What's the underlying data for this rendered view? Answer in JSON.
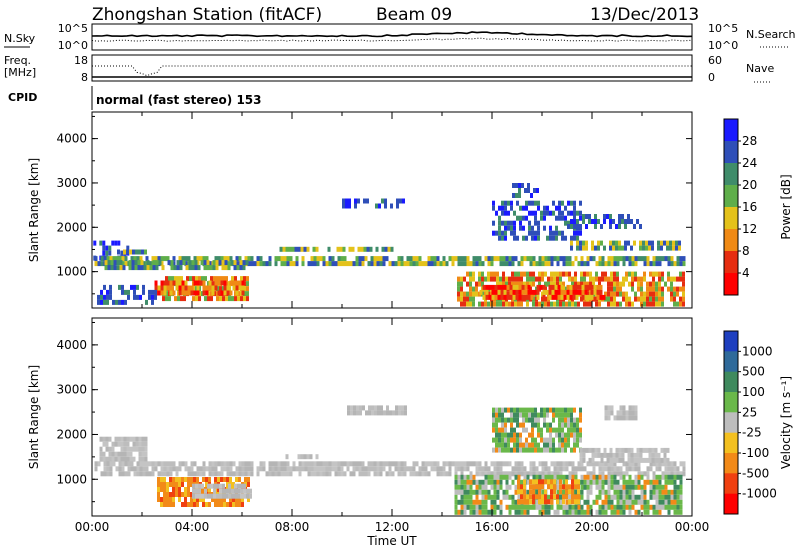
{
  "header": {
    "station": "Zhongshan Station (fitACF)",
    "beam": "Beam 09",
    "date": "13/Dec/2013"
  },
  "top_panels": {
    "nsky_label": "N.Sky",
    "nsearch_label": "N.Search",
    "noise_ticks_left": [
      "10^5",
      "10^0"
    ],
    "noise_ticks_right": [
      "10^5",
      "10^0"
    ],
    "freq_label_1": "Freq.",
    "freq_label_2": "[MHz]",
    "freq_ticks": [
      "18",
      "8"
    ],
    "nave_label": "Nave",
    "nave_ticks": [
      "60",
      "0"
    ],
    "cpid_label": "CPID",
    "cpid_text": "normal (fast stereo) 153"
  },
  "chart_data": [
    {
      "type": "heatmap",
      "name": "power",
      "ylabel": "Slant Range [km]",
      "yticks": [
        "1000",
        "2000",
        "3000",
        "4000"
      ],
      "ylim": [
        180,
        4600
      ],
      "xlim": [
        0,
        24
      ],
      "colorbar_label": "Power [dB]",
      "colorbar_ticks": [
        "4",
        "8",
        "12",
        "16",
        "20",
        "24",
        "28"
      ],
      "colorbar_colors": [
        "#1a1aff",
        "#2f4fb8",
        "#3f8c6a",
        "#5fae4a",
        "#e4c21b",
        "#f08a15",
        "#e62d10",
        "#ff0000"
      ],
      "regions": [
        {
          "t0": 0.05,
          "t1": 1.6,
          "r0": 1250,
          "r1": 1700,
          "level": "low"
        },
        {
          "t0": 1.0,
          "t1": 2.2,
          "r0": 1400,
          "r1": 1500,
          "level": "mid"
        },
        {
          "t0": 0.1,
          "t1": 23.7,
          "r0": 1150,
          "r1": 1350,
          "level": "mid"
        },
        {
          "t0": 0.5,
          "t1": 6.2,
          "r0": 1080,
          "r1": 1260,
          "level": "mid"
        },
        {
          "t0": 2.8,
          "t1": 6.2,
          "r0": 400,
          "r1": 900,
          "level": "high"
        },
        {
          "t0": 2.5,
          "t1": 6.0,
          "r0": 550,
          "r1": 800,
          "level": "max"
        },
        {
          "t0": 0.2,
          "t1": 2.5,
          "r0": 350,
          "r1": 700,
          "level": "low"
        },
        {
          "t0": 10.0,
          "t1": 12.5,
          "r0": 2450,
          "r1": 2650,
          "level": "low"
        },
        {
          "t0": 14.6,
          "t1": 23.7,
          "r0": 300,
          "r1": 1000,
          "level": "high"
        },
        {
          "t0": 15.5,
          "t1": 20.5,
          "r0": 400,
          "r1": 700,
          "level": "max"
        },
        {
          "t0": 16.0,
          "t1": 19.5,
          "r0": 1800,
          "r1": 2600,
          "level": "low"
        },
        {
          "t0": 19.0,
          "t1": 23.5,
          "r0": 1500,
          "r1": 1700,
          "level": "mid"
        },
        {
          "t0": 19.0,
          "t1": 22.0,
          "r0": 2000,
          "r1": 2300,
          "level": "low"
        },
        {
          "t0": 7.5,
          "t1": 12.0,
          "r0": 1450,
          "r1": 1560,
          "level": "mid"
        },
        {
          "t0": 16.8,
          "t1": 17.8,
          "r0": 2700,
          "r1": 3000,
          "level": "low"
        }
      ]
    },
    {
      "type": "heatmap",
      "name": "velocity",
      "ylabel": "Slant Range [km]",
      "yticks": [
        "1000",
        "2000",
        "3000",
        "4000"
      ],
      "ylim": [
        180,
        4600
      ],
      "xlim": [
        0,
        24
      ],
      "xticks": [
        "00:00",
        "04:00",
        "08:00",
        "12:00",
        "16:00",
        "20:00",
        "00:00"
      ],
      "xlabel": "Time UT",
      "colorbar_label": "Velocity [m s⁻¹]",
      "colorbar_ticks": [
        "1000",
        "500",
        "100",
        "25",
        "-25",
        "-100",
        "-500",
        "-1000"
      ],
      "colorbar_colors": [
        "#1e3fbf",
        "#2f6a9a",
        "#3f8a5e",
        "#6ab84a",
        "#bdbdbd",
        "#f3c020",
        "#f28a18",
        "#f04010",
        "#ff0000"
      ],
      "regions": [
        {
          "t0": 0.3,
          "t1": 2.2,
          "r0": 1500,
          "r1": 1950,
          "level": "grey"
        },
        {
          "t0": 0.1,
          "t1": 23.7,
          "r0": 1150,
          "r1": 1400,
          "level": "grey"
        },
        {
          "t0": 2.6,
          "t1": 6.2,
          "r0": 450,
          "r1": 1050,
          "level": "orange"
        },
        {
          "t0": 4.0,
          "t1": 6.3,
          "r0": 600,
          "r1": 900,
          "level": "grey"
        },
        {
          "t0": 10.2,
          "t1": 12.5,
          "r0": 2450,
          "r1": 2650,
          "level": "grey"
        },
        {
          "t0": 14.5,
          "t1": 23.6,
          "r0": 300,
          "r1": 1100,
          "level": "green"
        },
        {
          "t0": 17.0,
          "t1": 19.5,
          "r0": 500,
          "r1": 1000,
          "level": "orange"
        },
        {
          "t0": 16.0,
          "t1": 19.5,
          "r0": 1700,
          "r1": 2600,
          "level": "green"
        },
        {
          "t0": 19.5,
          "t1": 23.0,
          "r0": 1450,
          "r1": 1700,
          "level": "grey"
        },
        {
          "t0": 20.5,
          "t1": 21.8,
          "r0": 2400,
          "r1": 2650,
          "level": "grey"
        },
        {
          "t0": 7.5,
          "t1": 9.0,
          "r0": 1450,
          "r1": 1560,
          "level": "grey"
        }
      ]
    }
  ]
}
